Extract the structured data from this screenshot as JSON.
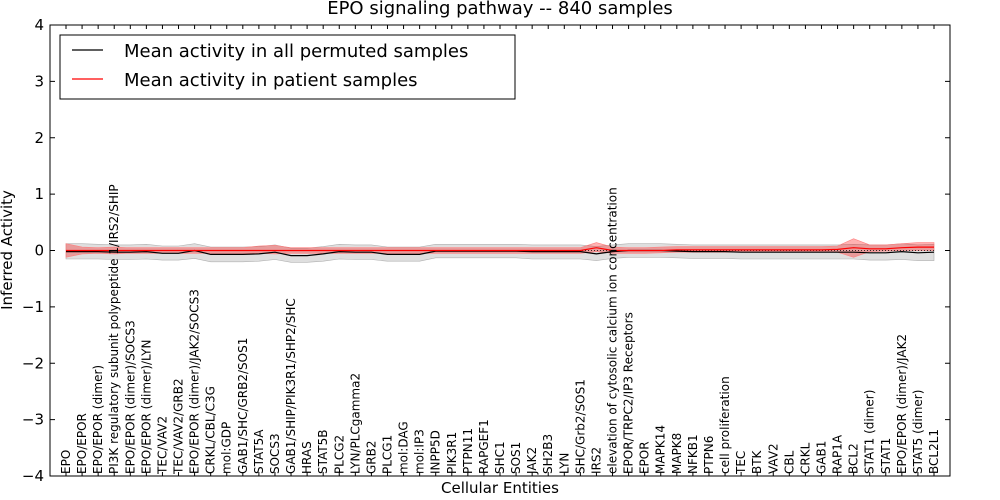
{
  "chart_data": {
    "type": "line",
    "title": "EPO signaling pathway -- 840 samples",
    "xlabel": "Cellular Entities",
    "ylabel": "Inferred Activity",
    "ylim": [
      -4,
      4
    ],
    "yticks": [
      "−4",
      "−3",
      "−2",
      "−1",
      "0",
      "1",
      "2",
      "3",
      "4"
    ],
    "legend_position": "top-left",
    "categories": [
      "EPO",
      "EPO/EPOR",
      "EPO/EPOR (dimer)",
      "PI3K regulatory subunit polypeptide 1/IRS2/SHIP",
      "EPO/EPOR (dimer)/SOCS3",
      "EPO/EPOR (dimer)/LYN",
      "TEC/VAV2",
      "TEC/VAV2/GRB2",
      "EPO/EPOR (dimer)/JAK2/SOCS3",
      "CRKL/CBL/C3G",
      "mol:GDP",
      "GAB1/SHC/GRB2/SOS1",
      "STAT5A",
      "SOCS3",
      "GAB1/SHIP/PIK3R1/SHP2/SHC",
      "HRAS",
      "STAT5B",
      "PLCG2",
      "LYN/PLCgamma2",
      "GRB2",
      "PLCG1",
      "mol:DAG",
      "mol:IP3",
      "INPP5D",
      "PIK3R1",
      "PTPN11",
      "RAPGEF1",
      "SHC1",
      "SOS1",
      "JAK2",
      "SH2B3",
      "LYN",
      "SHC/Grb2/SOS1",
      "IRS2",
      "elevation of cytosolic calcium ion concentration",
      "EPOR/TRPC2/IP3 Receptors",
      "EPOR",
      "MAPK14",
      "MAPK8",
      "NFKB1",
      "PTPN6",
      "cell proliferation",
      "TEC",
      "BTK",
      "VAV2",
      "CBL",
      "CRKL",
      "GAB1",
      "RAP1A",
      "BCL2",
      "STAT1 (dimer)",
      "STAT1",
      "EPO/EPOR (dimer)/JAK2",
      "STAT5 (dimer)",
      "BCL2L1"
    ],
    "series": [
      {
        "name": "Mean activity in all permuted samples",
        "color": "#000000",
        "values": [
          -0.02,
          -0.02,
          -0.02,
          -0.03,
          -0.03,
          -0.02,
          -0.05,
          -0.05,
          0.0,
          -0.07,
          -0.07,
          -0.07,
          -0.06,
          -0.03,
          -0.09,
          -0.09,
          -0.06,
          -0.02,
          -0.03,
          -0.03,
          -0.07,
          -0.07,
          -0.07,
          -0.01,
          -0.01,
          -0.01,
          -0.01,
          -0.01,
          -0.01,
          -0.02,
          -0.02,
          -0.02,
          -0.02,
          -0.06,
          -0.02,
          0.0,
          0.0,
          0.0,
          -0.01,
          -0.02,
          -0.02,
          -0.02,
          -0.03,
          -0.03,
          -0.03,
          -0.03,
          -0.03,
          -0.03,
          -0.03,
          -0.03,
          -0.04,
          -0.04,
          -0.02,
          -0.04,
          -0.03
        ],
        "band_lower": [
          -0.15,
          -0.15,
          -0.15,
          -0.16,
          -0.16,
          -0.15,
          -0.17,
          -0.17,
          -0.14,
          -0.2,
          -0.2,
          -0.2,
          -0.19,
          -0.16,
          -0.21,
          -0.21,
          -0.19,
          -0.15,
          -0.16,
          -0.16,
          -0.19,
          -0.19,
          -0.19,
          -0.13,
          -0.13,
          -0.13,
          -0.13,
          -0.13,
          -0.13,
          -0.15,
          -0.15,
          -0.15,
          -0.15,
          -0.18,
          -0.14,
          -0.12,
          -0.12,
          -0.12,
          -0.13,
          -0.14,
          -0.14,
          -0.14,
          -0.15,
          -0.15,
          -0.15,
          -0.15,
          -0.15,
          -0.15,
          -0.15,
          -0.15,
          -0.17,
          -0.17,
          -0.16,
          -0.18,
          -0.18
        ],
        "band_upper": [
          0.12,
          0.12,
          0.11,
          0.1,
          0.1,
          0.11,
          0.08,
          0.08,
          0.12,
          0.06,
          0.06,
          0.06,
          0.07,
          0.1,
          0.04,
          0.04,
          0.07,
          0.11,
          0.1,
          0.1,
          0.06,
          0.06,
          0.06,
          0.11,
          0.11,
          0.11,
          0.11,
          0.11,
          0.11,
          0.1,
          0.1,
          0.1,
          0.1,
          0.07,
          0.1,
          0.12,
          0.12,
          0.12,
          0.11,
          0.1,
          0.1,
          0.1,
          0.1,
          0.1,
          0.1,
          0.1,
          0.1,
          0.1,
          0.1,
          0.11,
          0.1,
          0.1,
          0.12,
          0.1,
          0.11
        ]
      },
      {
        "name": "Mean activity in patient samples",
        "color": "#ff0000",
        "values": [
          0.0,
          0.0,
          0.0,
          0.0,
          0.0,
          0.0,
          0.0,
          0.0,
          0.0,
          0.0,
          0.0,
          0.0,
          0.0,
          0.0,
          0.0,
          0.0,
          0.0,
          0.0,
          0.0,
          0.0,
          0.0,
          0.0,
          0.0,
          0.0,
          0.0,
          0.0,
          0.0,
          0.0,
          0.0,
          0.0,
          0.0,
          0.0,
          0.0,
          0.05,
          0.0,
          0.0,
          0.0,
          0.0,
          0.01,
          0.01,
          0.01,
          0.01,
          0.01,
          0.01,
          0.01,
          0.01,
          0.01,
          0.01,
          0.02,
          0.05,
          0.03,
          0.03,
          0.05,
          0.06,
          0.06
        ],
        "band_lower": [
          -0.12,
          -0.06,
          -0.05,
          -0.06,
          -0.05,
          -0.05,
          -0.05,
          -0.05,
          -0.05,
          -0.05,
          -0.05,
          -0.05,
          -0.05,
          -0.06,
          -0.05,
          -0.05,
          -0.05,
          -0.05,
          -0.05,
          -0.05,
          -0.05,
          -0.05,
          -0.05,
          -0.05,
          -0.05,
          -0.05,
          -0.05,
          -0.05,
          -0.05,
          -0.05,
          -0.05,
          -0.05,
          -0.05,
          -0.02,
          -0.05,
          -0.05,
          -0.05,
          -0.04,
          -0.03,
          -0.03,
          -0.03,
          -0.03,
          -0.03,
          -0.03,
          -0.03,
          -0.03,
          -0.03,
          -0.03,
          -0.03,
          -0.12,
          -0.02,
          -0.01,
          0.0,
          0.0,
          0.0
        ],
        "band_upper": [
          0.12,
          0.06,
          0.05,
          0.06,
          0.05,
          0.05,
          0.05,
          0.05,
          0.05,
          0.05,
          0.05,
          0.05,
          0.08,
          0.09,
          0.05,
          0.05,
          0.05,
          0.05,
          0.05,
          0.05,
          0.05,
          0.05,
          0.05,
          0.05,
          0.05,
          0.05,
          0.05,
          0.05,
          0.05,
          0.05,
          0.05,
          0.05,
          0.05,
          0.14,
          0.06,
          0.05,
          0.05,
          0.06,
          0.07,
          0.07,
          0.07,
          0.07,
          0.07,
          0.07,
          0.07,
          0.07,
          0.07,
          0.07,
          0.08,
          0.21,
          0.1,
          0.1,
          0.12,
          0.14,
          0.14
        ]
      }
    ]
  }
}
